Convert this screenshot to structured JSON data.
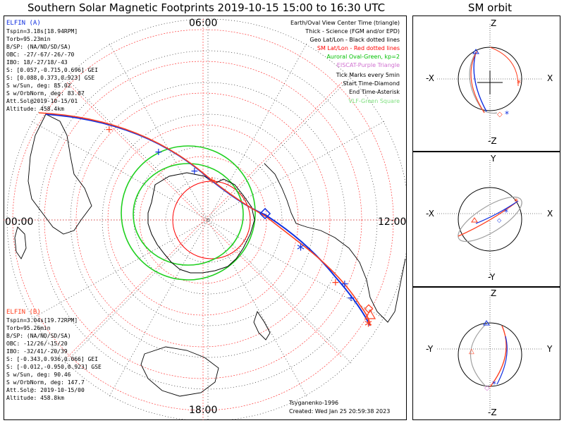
{
  "title": "Southern Solar Magnetic Footprints 2019-10-15 15:00 to 16:30 UTC",
  "orbit_title": "SM orbit",
  "clock_labels": {
    "top": "06:00",
    "bottom": "18:00",
    "left": "00:00",
    "right": "12:00"
  },
  "sat_a": {
    "name": "ELFIN (A)",
    "color": "#1030e0",
    "lines": [
      "Tspin=3.18s[18.94RPM]",
      "Torb=95.23min",
      "B/SP: (NA/ND/SD/SA)",
      "OBC: -27/-67/-26/-70",
      "IBO: 18/-27/18/-43",
      "S: [0.057,-0.715,0.696] GEI",
      "S: [0.088,0.373,0.923] GSE",
      "S w/Sun, deg: 85.02",
      "S w/OrbNorm, deg: 83.87",
      "Att.Sol@2019-10-15/01",
      "Altitude: 458.4km"
    ]
  },
  "sat_b": {
    "name": "ELFIN (B)",
    "color": "#ff4020",
    "lines": [
      "Tspin=3.04s[19.72RPM]",
      "Torb=95.26min",
      "B/SP: (NA/ND/SD/SA)",
      "OBC: -12/26/-15/20",
      "IBO: -32/41/-20/39",
      "S: [-0.343,0.936,0.066] GEI",
      "S: [-0.012,-0.950,0.923] GSE",
      "S w/Sun, deg: 90.46",
      "S w/OrbNorm, deg: 147.7",
      "Att.Sol@: 2019-10-15/00",
      "Altitude: 458.8km"
    ]
  },
  "legend": [
    {
      "text": "Earth/Oval View Center Time (triangle)",
      "color": "#000000"
    },
    {
      "text": "Thick - Science (FGM and/or EPD)",
      "color": "#000000"
    },
    {
      "text": "Geo Lat/Lon - Black dotted lines",
      "color": "#000000"
    },
    {
      "text": "SM Lat/Lon - Red dotted lines",
      "color": "#ff0000"
    },
    {
      "text": "Auroral Oval-Green, kp=2",
      "color": "#00c000"
    },
    {
      "text": "EISCAT-Purple Triangle",
      "color": "#d070d0"
    },
    {
      "text": "Tick Marks every 5min",
      "color": "#000000"
    },
    {
      "text": "Start Time-Diamond",
      "color": "#000000"
    },
    {
      "text": "End Time-Asterisk",
      "color": "#000000"
    },
    {
      "text": "VLF-Green Square",
      "color": "#80e080"
    }
  ],
  "credit": "Tsyganenko-1996",
  "created": "Created: Wed Jan 25 20:59:38 2023",
  "orbit_panels": [
    {
      "top": "Z",
      "bottom": "-Z",
      "left": "-X",
      "right": "X"
    },
    {
      "top": "Y",
      "bottom": "-Y",
      "left": "-X",
      "right": "X"
    },
    {
      "top": "Z",
      "bottom": "-Z",
      "left": "-Y",
      "right": "Y"
    }
  ],
  "chart_data": {
    "type": "polar-map",
    "title": "Southern Solar Magnetic Footprints 2019-10-15 15:00 to 16:30 UTC",
    "clock_axis": [
      "06:00",
      "12:00",
      "18:00",
      "00:00"
    ],
    "series": [
      {
        "name": "ELFIN (A)",
        "color": "#1030e0"
      },
      {
        "name": "ELFIN (B)",
        "color": "#ff4020"
      }
    ]
  }
}
